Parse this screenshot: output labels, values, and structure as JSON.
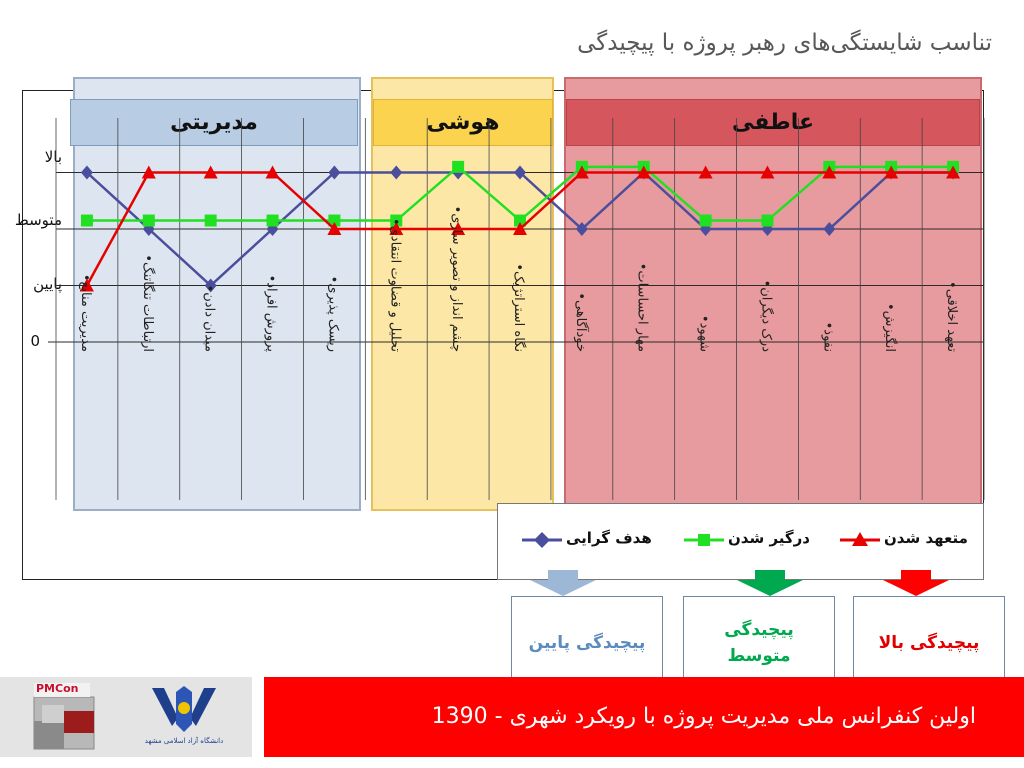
{
  "slide": {
    "title": "تناسب شایستگی‌های رهبر پروژه با پیچیدگی",
    "footer": "اولین کنفرانس ملی مدیریت پروژه با رویکرد شهری - 1390",
    "logo_left_text": "PMCon",
    "logo_right_text": "دانشگاه آزاد اسلامی مشهد"
  },
  "groups": [
    {
      "label": "مدیریتی",
      "color": "#b8cce4"
    },
    {
      "label": "هوشی",
      "color": "#fcd97a"
    },
    {
      "label": "عاطفی",
      "color": "#d9595e"
    }
  ],
  "chart_data": {
    "type": "line",
    "y_levels": [
      "0",
      "پایین",
      "متوسط",
      "بالا"
    ],
    "categories": [
      "مدیریت منابع•",
      "ارتباطات تنگاتنگ•",
      "میدان دادن•",
      "پرورش افراد•",
      "ریسک پذیری•",
      "تحلیل و قضاوت انتقادی•",
      "چشم انداز و تصویر سازی•",
      "نگاه استراتژیک•",
      "خودآگاهی•",
      "مهار احساسات•",
      "شهود•",
      "درک دیگران•",
      "نفوذ•",
      "انگیزش•",
      "تعهد اخلاقی•"
    ],
    "series": [
      {
        "name": "هدف گرایی",
        "color": "#4b4e9c",
        "marker": "diamond",
        "values": [
          3,
          2,
          1,
          2,
          3,
          3,
          3,
          3,
          2,
          3,
          2,
          2,
          2,
          3,
          3
        ]
      },
      {
        "name": "درگیر شدن",
        "color": "#21e021",
        "marker": "square",
        "values": [
          2.15,
          2.15,
          2.15,
          2.15,
          2.15,
          2.15,
          3.1,
          2.15,
          3.1,
          3.1,
          2.15,
          2.15,
          3.1,
          3.1,
          3.1
        ]
      },
      {
        "name": "متعهد شدن",
        "color": "#e60000",
        "marker": "triangle",
        "values": [
          1,
          3,
          3,
          3,
          2,
          2,
          2,
          2,
          3,
          3,
          3,
          3,
          3,
          3,
          3
        ]
      }
    ]
  },
  "complexity": [
    {
      "label": "پیچیدگی پایین",
      "color": "#5b8bbf",
      "arrow": "#9db8d6"
    },
    {
      "label": "پیچیدگی متوسط",
      "color": "#00a84f",
      "arrow": "#00a84f"
    },
    {
      "label": "پیچیدگی بالا",
      "color": "#e00000",
      "arrow": "#ff0000"
    }
  ]
}
